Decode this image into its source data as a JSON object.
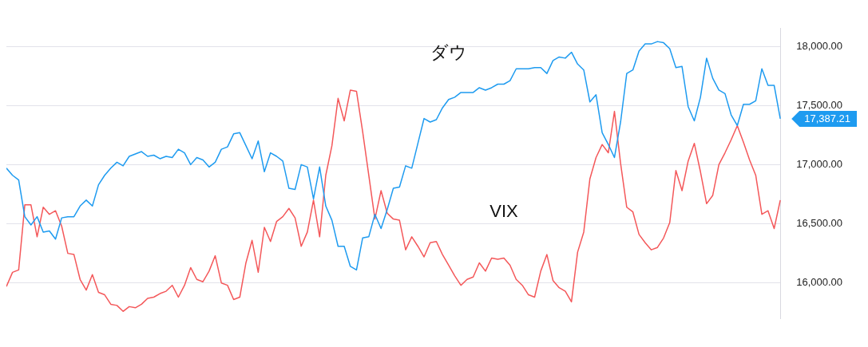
{
  "chart_data": {
    "type": "line",
    "categories": [
      null,
      null,
      null,
      null,
      null,
      null,
      null,
      null,
      null,
      null,
      null,
      null,
      null,
      null,
      null,
      null,
      null,
      null,
      null,
      null,
      null,
      null,
      null,
      null,
      null,
      null,
      null,
      null,
      null,
      null,
      null,
      null,
      null,
      null,
      null,
      null,
      null,
      null,
      null,
      null,
      null,
      null,
      null,
      null,
      null,
      null,
      null,
      null,
      null,
      null,
      null,
      null,
      null,
      null,
      null,
      null,
      null,
      null,
      null,
      null,
      null,
      null,
      null,
      null,
      null,
      null,
      null,
      null,
      null,
      null,
      null,
      null,
      null,
      null,
      null,
      null,
      null,
      null,
      null,
      null,
      null,
      null,
      null,
      null,
      null,
      null,
      null,
      null,
      null,
      null,
      null,
      null,
      null,
      null,
      null,
      null,
      null,
      null,
      null,
      null,
      null,
      null,
      null,
      null,
      null,
      null,
      null,
      null,
      null,
      null,
      null,
      null,
      null,
      null,
      null,
      null,
      null,
      null,
      null,
      null,
      null,
      null,
      null,
      null,
      null,
      null,
      null
    ],
    "series": [
      {
        "name": "ダウ",
        "color": "#1e9bf0",
        "values": [
          16970,
          16910,
          16870,
          16560,
          16490,
          16560,
          16430,
          16440,
          16370,
          16550,
          16560,
          16560,
          16650,
          16700,
          16650,
          16830,
          16910,
          16970,
          17020,
          16990,
          17070,
          17090,
          17110,
          17070,
          17080,
          17050,
          17070,
          17060,
          17130,
          17100,
          17000,
          17060,
          17040,
          16980,
          17020,
          17130,
          17150,
          17260,
          17270,
          17160,
          17050,
          17200,
          16940,
          17100,
          17070,
          17030,
          16800,
          16790,
          17000,
          16980,
          16710,
          16980,
          16650,
          16530,
          16310,
          16310,
          16140,
          16110,
          16380,
          16390,
          16580,
          16460,
          16620,
          16800,
          16810,
          16990,
          16970,
          17180,
          17390,
          17360,
          17380,
          17480,
          17550,
          17570,
          17610,
          17610,
          17610,
          17650,
          17630,
          17650,
          17680,
          17680,
          17710,
          17810,
          17810,
          17810,
          17820,
          17820,
          17770,
          17880,
          17910,
          17900,
          17950,
          17850,
          17800,
          17530,
          17590,
          17270,
          17170,
          17060,
          17360,
          17770,
          17800,
          17960,
          18020,
          18020,
          18040,
          18030,
          17980,
          17820,
          17830,
          17490,
          17370,
          17570,
          17900,
          17730,
          17630,
          17600,
          17420,
          17330,
          17510,
          17510,
          17540,
          17810,
          17670,
          17670,
          17387.21
        ]
      },
      {
        "name": "VIX",
        "color": "#f4585a",
        "values": [
          15970,
          16090,
          16110,
          16660,
          16660,
          16390,
          16640,
          16580,
          16610,
          16480,
          16250,
          16240,
          16030,
          15940,
          16070,
          15920,
          15900,
          15820,
          15810,
          15760,
          15800,
          15790,
          15820,
          15870,
          15880,
          15910,
          15930,
          15980,
          15880,
          15980,
          16130,
          16030,
          16010,
          16100,
          16230,
          16000,
          15980,
          15860,
          15880,
          16170,
          16360,
          16090,
          16470,
          16350,
          16520,
          16560,
          16630,
          16550,
          16310,
          16430,
          16700,
          16390,
          16910,
          17160,
          17560,
          17370,
          17630,
          17620,
          17280,
          16910,
          16540,
          16780,
          16590,
          16540,
          16530,
          16280,
          16390,
          16310,
          16220,
          16340,
          16350,
          16240,
          16150,
          16060,
          15980,
          16030,
          16050,
          16170,
          16100,
          16210,
          16200,
          16210,
          16150,
          16030,
          15980,
          15900,
          15880,
          16100,
          16240,
          16020,
          15960,
          15930,
          15840,
          16260,
          16430,
          16880,
          17060,
          17170,
          17100,
          17450,
          17010,
          16640,
          16600,
          16410,
          16340,
          16280,
          16300,
          16380,
          16510,
          16950,
          16780,
          17030,
          17180,
          16940,
          16670,
          16740,
          17000,
          17100,
          17210,
          17330,
          17190,
          17040,
          16910,
          16580,
          16610,
          16460,
          16700
        ]
      }
    ],
    "ylim": [
      15700,
      18150
    ],
    "yticks": [
      {
        "value": 16000,
        "label": "16,000.00"
      },
      {
        "value": 16500,
        "label": "16,500.00"
      },
      {
        "value": 17000,
        "label": "17,000.00"
      },
      {
        "value": 17500,
        "label": "17,500.00"
      },
      {
        "value": 18000,
        "label": "18,000.00"
      }
    ],
    "grid": "y",
    "legend": false,
    "marker": "none",
    "line_style": "solid",
    "annotations": [
      "17,387.21"
    ]
  }
}
